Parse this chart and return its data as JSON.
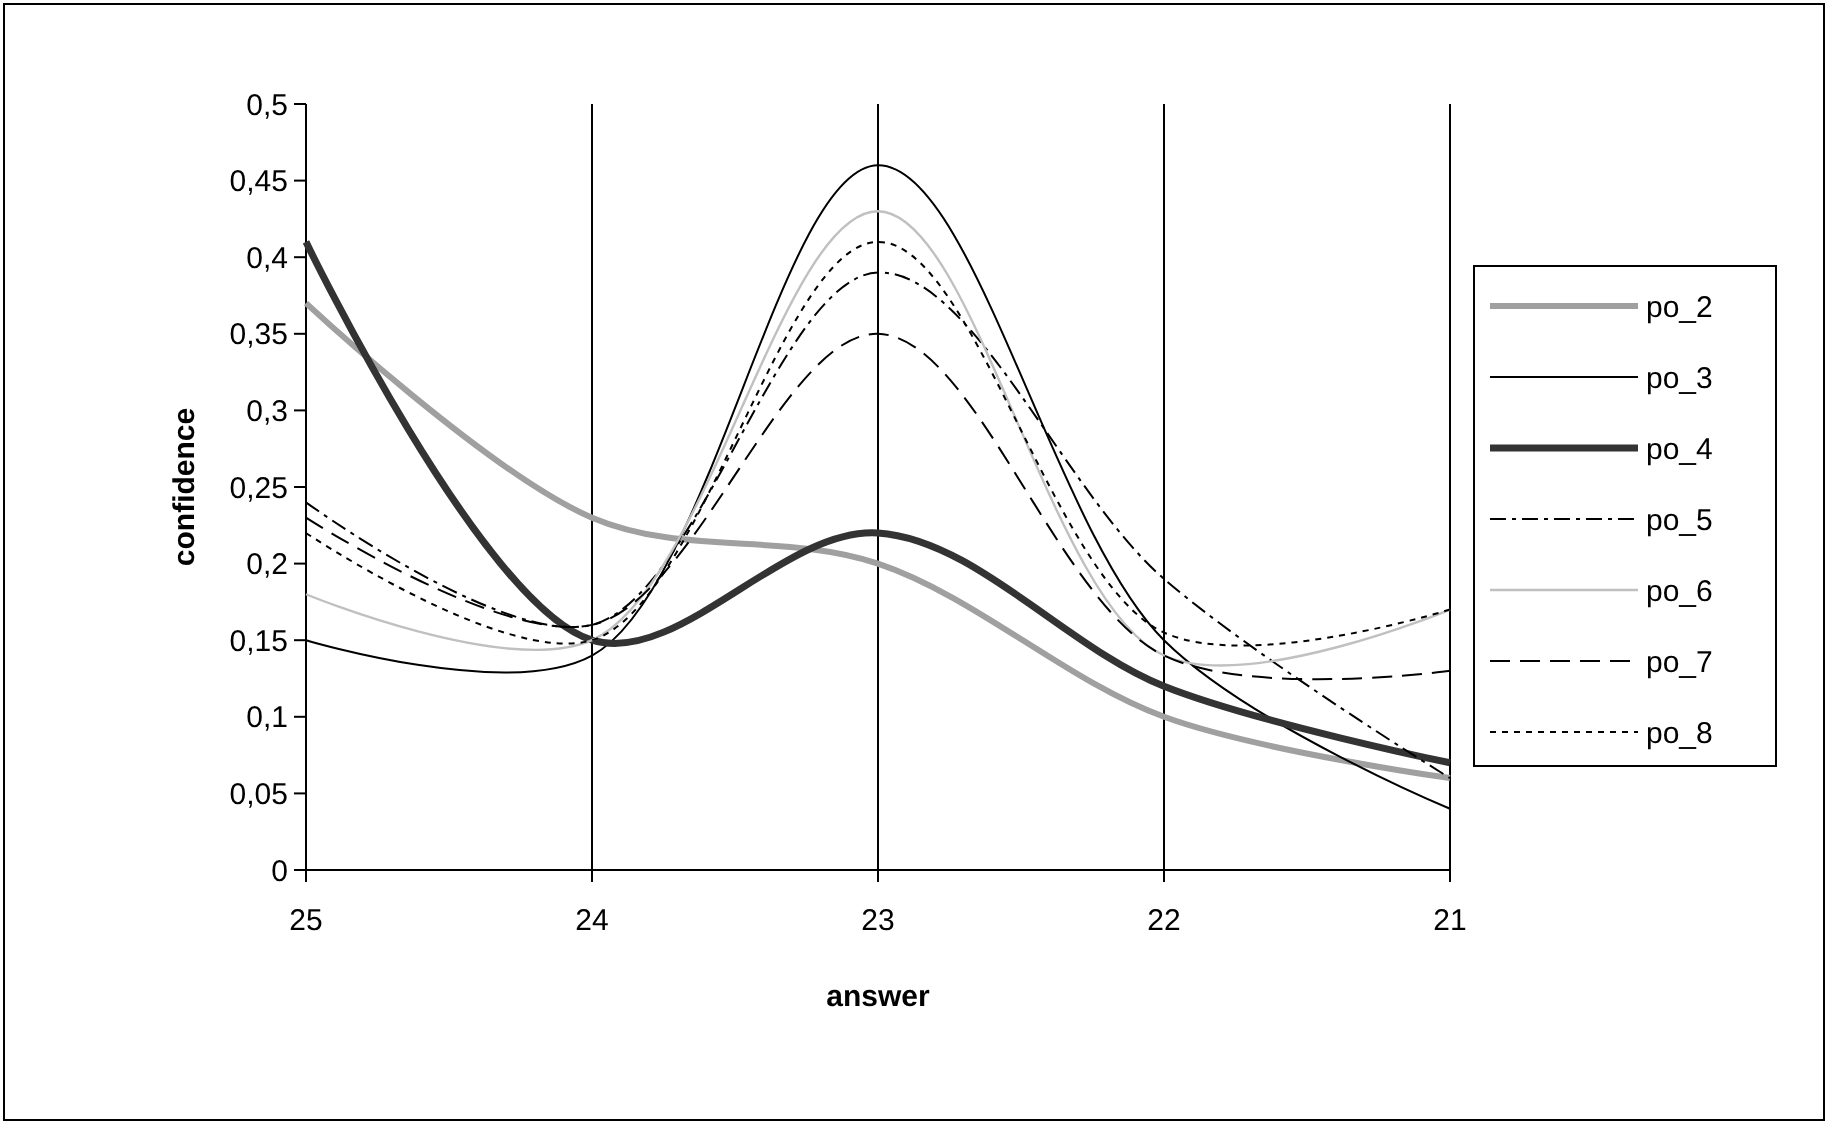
{
  "chart_data": {
    "type": "line",
    "xlabel": "answer",
    "ylabel": "confidence",
    "x": [
      25,
      24,
      23,
      22,
      21
    ],
    "xlim": [
      25,
      21
    ],
    "xticks": [
      25,
      24,
      23,
      22,
      21
    ],
    "ylim": [
      0,
      0.5
    ],
    "yticks": [
      0,
      {
        "value": 0.05,
        "label": "0,05"
      },
      {
        "value": 0.1,
        "label": "0,1"
      },
      {
        "value": 0.15,
        "label": "0,15"
      },
      {
        "value": 0.2,
        "label": "0,2"
      },
      {
        "value": 0.25,
        "label": "0,25"
      },
      {
        "value": 0.3,
        "label": "0,3"
      },
      {
        "value": 0.35,
        "label": "0,35"
      },
      {
        "value": 0.4,
        "label": "0,4"
      },
      {
        "value": 0.45,
        "label": "0,45"
      },
      {
        "value": 0.5,
        "label": "0,5"
      }
    ],
    "grid": "x",
    "legend": "right",
    "marker": "none",
    "series": [
      {
        "name": "po_2",
        "color": "#a0a0a0",
        "line_style": "solid",
        "values": [
          0.37,
          0.23,
          0.2,
          0.1,
          0.06
        ]
      },
      {
        "name": "po_3",
        "color": "#000000",
        "line_style": "solid",
        "values": [
          0.15,
          0.14,
          0.46,
          0.15,
          0.04
        ]
      },
      {
        "name": "po_4",
        "color": "#333333",
        "line_style": "solid",
        "values": [
          0.41,
          0.15,
          0.22,
          0.12,
          0.07
        ]
      },
      {
        "name": "po_5",
        "color": "#000000",
        "line_style": "dashdot",
        "values": [
          0.24,
          0.16,
          0.39,
          0.19,
          0.06
        ]
      },
      {
        "name": "po_6",
        "color": "#c0c0c0",
        "line_style": "solid",
        "values": [
          0.18,
          0.15,
          0.43,
          0.14,
          0.17
        ]
      },
      {
        "name": "po_7",
        "color": "#000000",
        "line_style": "dashed",
        "values": [
          0.23,
          0.16,
          0.35,
          0.14,
          0.13
        ]
      },
      {
        "name": "po_8",
        "color": "#000000",
        "line_style": "dotted",
        "values": [
          0.22,
          0.15,
          0.41,
          0.155,
          0.17
        ]
      }
    ]
  }
}
